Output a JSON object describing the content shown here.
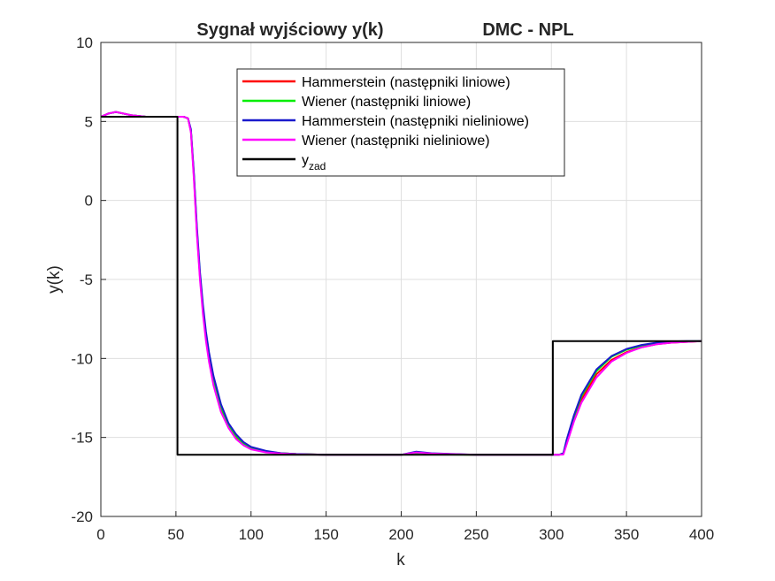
{
  "chart_data": {
    "type": "line",
    "title": "Sygnał wyjściowy y(k)",
    "subtitle": "DMC - NPL",
    "xlabel": "k",
    "ylabel": "y(k)",
    "xlim": [
      0,
      400
    ],
    "ylim": [
      -20,
      10
    ],
    "xticks": [
      0,
      50,
      100,
      150,
      200,
      250,
      300,
      350,
      400
    ],
    "yticks": [
      -20,
      -15,
      -10,
      -5,
      0,
      5,
      10
    ],
    "grid": true,
    "legend_position": "top-center",
    "series": [
      {
        "name": "Hammerstein (następniki liniowe)",
        "color": "#ff0000",
        "x": [
          0,
          5,
          10,
          20,
          30,
          40,
          50,
          55,
          58,
          60,
          62,
          64,
          66,
          68,
          70,
          72,
          75,
          80,
          85,
          90,
          95,
          100,
          110,
          120,
          130,
          150,
          175,
          200,
          205,
          210,
          215,
          220,
          250,
          300,
          305,
          308,
          310,
          315,
          320,
          330,
          340,
          350,
          360,
          370,
          380,
          390,
          400
        ],
        "y": [
          5.3,
          5.5,
          5.6,
          5.4,
          5.3,
          5.3,
          5.3,
          5.3,
          5.2,
          4.4,
          1.5,
          -2.0,
          -4.8,
          -7.0,
          -8.7,
          -10.0,
          -11.5,
          -13.2,
          -14.3,
          -15.0,
          -15.4,
          -15.7,
          -15.9,
          -16.0,
          -16.05,
          -16.1,
          -16.1,
          -16.1,
          -16.05,
          -16.0,
          -16.0,
          -16.05,
          -16.1,
          -16.1,
          -16.1,
          -16.05,
          -15.4,
          -13.9,
          -12.6,
          -11.0,
          -10.1,
          -9.6,
          -9.3,
          -9.1,
          -9.0,
          -8.95,
          -8.9
        ]
      },
      {
        "name": "Wiener (następniki liniowe)",
        "color": "#00ee00",
        "x": [
          0,
          5,
          10,
          20,
          30,
          40,
          50,
          55,
          58,
          60,
          62,
          64,
          66,
          68,
          70,
          72,
          75,
          80,
          85,
          90,
          95,
          100,
          110,
          120,
          130,
          150,
          175,
          200,
          205,
          210,
          215,
          220,
          250,
          300,
          305,
          308,
          310,
          315,
          320,
          330,
          340,
          350,
          360,
          370,
          380,
          390,
          400
        ],
        "y": [
          5.3,
          5.5,
          5.6,
          5.4,
          5.3,
          5.3,
          5.3,
          5.3,
          5.2,
          4.4,
          1.6,
          -1.9,
          -4.7,
          -6.9,
          -8.6,
          -9.9,
          -11.4,
          -13.1,
          -14.2,
          -14.9,
          -15.4,
          -15.7,
          -15.9,
          -16.0,
          -16.05,
          -16.1,
          -16.1,
          -16.1,
          -16.05,
          -16.05,
          -16.05,
          -16.07,
          -16.1,
          -16.1,
          -16.1,
          -16.0,
          -15.3,
          -13.7,
          -12.4,
          -10.8,
          -9.9,
          -9.45,
          -9.2,
          -9.05,
          -8.95,
          -8.92,
          -8.9
        ]
      },
      {
        "name": "Hammerstein (następniki nieliniowe)",
        "color": "#1a1acc",
        "x": [
          0,
          5,
          10,
          20,
          30,
          40,
          50,
          55,
          58,
          60,
          62,
          64,
          66,
          68,
          70,
          72,
          75,
          80,
          85,
          90,
          95,
          100,
          110,
          120,
          130,
          150,
          175,
          200,
          205,
          210,
          215,
          220,
          250,
          300,
          305,
          308,
          310,
          315,
          320,
          330,
          340,
          350,
          360,
          370,
          380,
          390,
          400
        ],
        "y": [
          5.3,
          5.5,
          5.6,
          5.4,
          5.3,
          5.3,
          5.3,
          5.3,
          5.2,
          4.5,
          1.7,
          -1.7,
          -4.5,
          -6.6,
          -8.3,
          -9.6,
          -11.1,
          -12.9,
          -14.1,
          -14.8,
          -15.3,
          -15.6,
          -15.85,
          -16.0,
          -16.05,
          -16.1,
          -16.1,
          -16.1,
          -16.0,
          -15.9,
          -15.95,
          -16.0,
          -16.1,
          -16.1,
          -16.1,
          -16.0,
          -15.2,
          -13.6,
          -12.3,
          -10.7,
          -9.85,
          -9.4,
          -9.15,
          -9.0,
          -8.93,
          -8.9,
          -8.9
        ]
      },
      {
        "name": "Wiener (następniki nieliniowe)",
        "color": "#ff00ff",
        "x": [
          0,
          5,
          10,
          20,
          30,
          40,
          50,
          55,
          58,
          60,
          62,
          64,
          66,
          68,
          70,
          72,
          75,
          80,
          85,
          90,
          95,
          100,
          110,
          120,
          130,
          150,
          175,
          200,
          205,
          210,
          215,
          220,
          250,
          300,
          305,
          308,
          310,
          315,
          320,
          330,
          340,
          350,
          360,
          370,
          380,
          390,
          400
        ],
        "y": [
          5.3,
          5.5,
          5.6,
          5.4,
          5.3,
          5.3,
          5.3,
          5.3,
          5.2,
          4.3,
          1.3,
          -2.2,
          -5.0,
          -7.2,
          -8.9,
          -10.2,
          -11.7,
          -13.4,
          -14.4,
          -15.1,
          -15.5,
          -15.75,
          -15.95,
          -16.02,
          -16.07,
          -16.1,
          -16.1,
          -16.1,
          -16.02,
          -15.95,
          -15.98,
          -16.02,
          -16.1,
          -16.1,
          -16.1,
          -16.08,
          -15.5,
          -14.0,
          -12.8,
          -11.2,
          -10.2,
          -9.65,
          -9.3,
          -9.1,
          -9.0,
          -8.95,
          -8.9
        ]
      },
      {
        "name": "y",
        "name_subscript": "zad",
        "color": "#000000",
        "x": [
          0,
          51,
          51,
          301,
          301,
          400
        ],
        "y": [
          5.3,
          5.3,
          -16.1,
          -16.1,
          -8.9,
          -8.9
        ]
      }
    ]
  }
}
